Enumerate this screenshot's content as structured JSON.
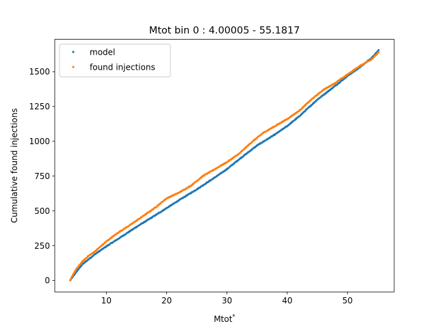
{
  "chart_data": {
    "type": "scatter",
    "title": "Mtot bin 0 : 4.00005 - 55.1817",
    "xlabel": "Mtot",
    "xlabel_sup": "*",
    "ylabel": "Cumulative found injections",
    "xlim": [
      1.44,
      57.74
    ],
    "ylim": [
      -82.5,
      1732.5
    ],
    "xticks": [
      10,
      20,
      30,
      40,
      50
    ],
    "yticks": [
      0,
      250,
      500,
      750,
      1000,
      1250,
      1500
    ],
    "legend_position": "top-left",
    "series": [
      {
        "name": "model",
        "color": "#1f77b4",
        "anchors": [
          [
            4.0,
            0
          ],
          [
            4.5,
            30
          ],
          [
            5.0,
            60
          ],
          [
            6.0,
            115
          ],
          [
            8.0,
            185
          ],
          [
            10.0,
            245
          ],
          [
            12.0,
            300
          ],
          [
            15.0,
            385
          ],
          [
            18.0,
            465
          ],
          [
            20.0,
            520
          ],
          [
            22.0,
            575
          ],
          [
            25.0,
            655
          ],
          [
            28.0,
            740
          ],
          [
            30.0,
            800
          ],
          [
            32.0,
            870
          ],
          [
            35.0,
            970
          ],
          [
            38.0,
            1050
          ],
          [
            40.0,
            1110
          ],
          [
            42.0,
            1180
          ],
          [
            45.0,
            1300
          ],
          [
            48.0,
            1400
          ],
          [
            50.0,
            1470
          ],
          [
            52.0,
            1530
          ],
          [
            54.0,
            1600
          ],
          [
            55.18,
            1655
          ]
        ]
      },
      {
        "name": "found injections",
        "color": "#ff7f0e",
        "anchors": [
          [
            4.0,
            0
          ],
          [
            4.5,
            45
          ],
          [
            5.0,
            80
          ],
          [
            6.0,
            135
          ],
          [
            7.0,
            175
          ],
          [
            8.0,
            205
          ],
          [
            10.0,
            280
          ],
          [
            12.0,
            345
          ],
          [
            14.0,
            400
          ],
          [
            16.0,
            460
          ],
          [
            18.0,
            520
          ],
          [
            20.0,
            590
          ],
          [
            22.0,
            630
          ],
          [
            24.0,
            680
          ],
          [
            26.0,
            750
          ],
          [
            28.0,
            800
          ],
          [
            30.0,
            850
          ],
          [
            32.0,
            910
          ],
          [
            34.0,
            990
          ],
          [
            36.0,
            1060
          ],
          [
            38.0,
            1110
          ],
          [
            40.0,
            1160
          ],
          [
            42.0,
            1220
          ],
          [
            44.0,
            1300
          ],
          [
            46.0,
            1370
          ],
          [
            48.0,
            1420
          ],
          [
            50.0,
            1480
          ],
          [
            52.0,
            1540
          ],
          [
            54.0,
            1590
          ],
          [
            55.18,
            1640
          ]
        ]
      }
    ]
  }
}
